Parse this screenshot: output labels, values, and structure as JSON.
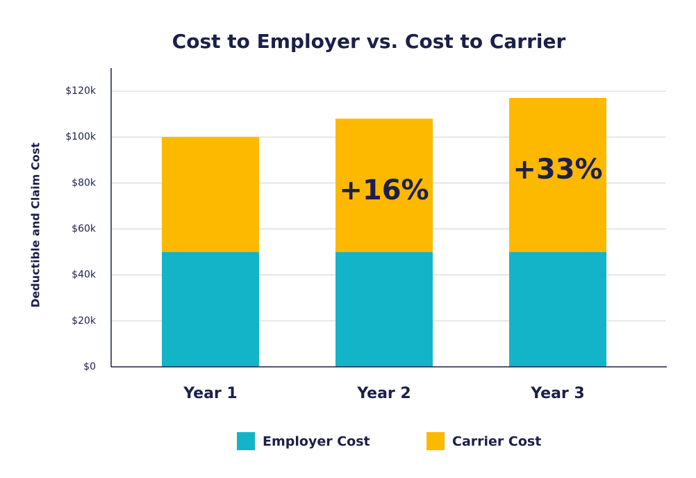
{
  "chart_data": {
    "type": "stacked_bar",
    "title": "Cost to Employer vs. Cost to Carrier",
    "y_label": "Deductible and Claim Cost",
    "categories": [
      "Year 1",
      "Year 2",
      "Year 3"
    ],
    "series": [
      {
        "name": "Employer Cost",
        "color": "#14b4c8",
        "values": [
          50000,
          50000,
          50000
        ]
      },
      {
        "name": "Carrier Cost",
        "color": "#fdb900",
        "values": [
          50000,
          58000,
          67000
        ]
      }
    ],
    "annotations": [
      null,
      "+16%",
      "+33%"
    ],
    "ylim": [
      0,
      130000
    ],
    "yticks": [
      {
        "value": 0,
        "label": "$0"
      },
      {
        "value": 20000,
        "label": "$20k"
      },
      {
        "value": 40000,
        "label": "$40k"
      },
      {
        "value": 60000,
        "label": "$60k"
      },
      {
        "value": 80000,
        "label": "$80k"
      },
      {
        "value": 100000,
        "label": "$100k"
      },
      {
        "value": 120000,
        "label": "$120k"
      }
    ],
    "grid": true,
    "legend": "bottom"
  }
}
